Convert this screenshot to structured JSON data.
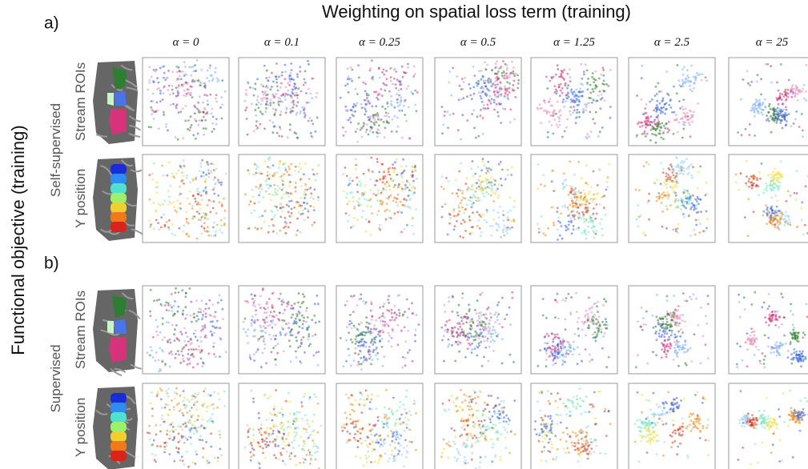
{
  "header": {
    "title": "Weighting on spatial loss term (training)",
    "y_title": "Functional objective (training)"
  },
  "columns": [
    "α = 0",
    "α = 0.1",
    "α = 0.25",
    "α = 0.5",
    "α = 1.25",
    "α = 2.5",
    "α = 25"
  ],
  "sections": [
    {
      "label": "a)",
      "name": "Self-supervised",
      "rows": [
        "Stream ROIs",
        "Y position"
      ]
    },
    {
      "label": "b)",
      "name": "Supervised",
      "rows": [
        "Stream ROIs",
        "Y position"
      ]
    }
  ]
}
